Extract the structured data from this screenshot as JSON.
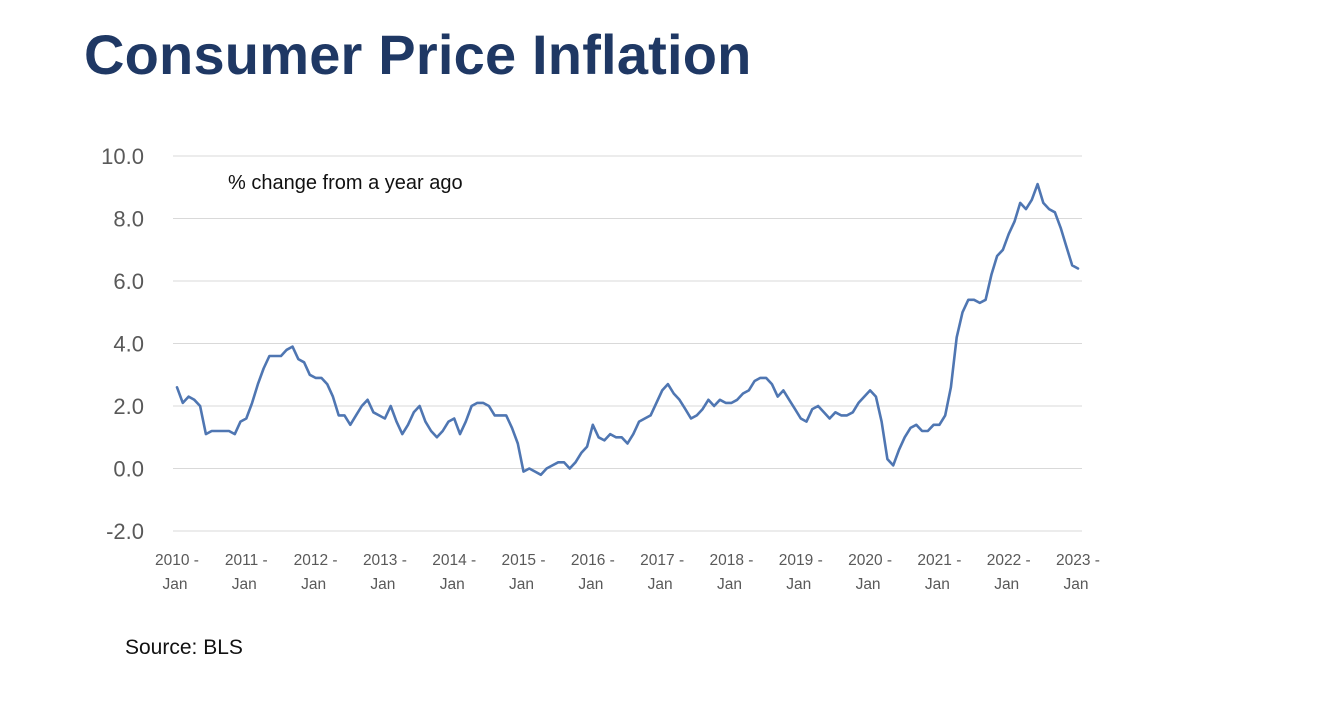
{
  "slide": {
    "title": "Consumer Price Inflation",
    "source": "Source: BLS"
  },
  "colors": {
    "title": "#1f3864",
    "series_line": "#4f76b2",
    "gridline": "#d9d9d9",
    "tick_text": "#595959"
  },
  "chart_data": {
    "type": "line",
    "title": "",
    "annotation": "% change from a year ago",
    "xlabel": "",
    "ylabel": "",
    "ylim": [
      -2,
      10
    ],
    "y_ticks": [
      "10.0",
      "8.0",
      "6.0",
      "4.0",
      "2.0",
      "0.0",
      "-2.0"
    ],
    "x_ticks": [
      {
        "line1": "2010 -",
        "line2": "Jan"
      },
      {
        "line1": "2011 -",
        "line2": "Jan"
      },
      {
        "line1": "2012 -",
        "line2": "Jan"
      },
      {
        "line1": "2013 -",
        "line2": "Jan"
      },
      {
        "line1": "2014 -",
        "line2": "Jan"
      },
      {
        "line1": "2015 -",
        "line2": "Jan"
      },
      {
        "line1": "2016 -",
        "line2": "Jan"
      },
      {
        "line1": "2017 -",
        "line2": "Jan"
      },
      {
        "line1": "2018 -",
        "line2": "Jan"
      },
      {
        "line1": "2019 -",
        "line2": "Jan"
      },
      {
        "line1": "2020 -",
        "line2": "Jan"
      },
      {
        "line1": "2021 -",
        "line2": "Jan"
      },
      {
        "line1": "2022 -",
        "line2": "Jan"
      },
      {
        "line1": "2023 -",
        "line2": "Jan"
      }
    ],
    "grid": true,
    "series": [
      {
        "name": "CPI % change from a year ago",
        "start": "2010-01",
        "frequency": "monthly",
        "values": [
          2.6,
          2.1,
          2.3,
          2.2,
          2.0,
          1.1,
          1.2,
          1.2,
          1.2,
          1.2,
          1.1,
          1.5,
          1.6,
          2.1,
          2.7,
          3.2,
          3.6,
          3.6,
          3.6,
          3.8,
          3.9,
          3.5,
          3.4,
          3.0,
          2.9,
          2.9,
          2.7,
          2.3,
          1.7,
          1.7,
          1.4,
          1.7,
          2.0,
          2.2,
          1.8,
          1.7,
          1.6,
          2.0,
          1.5,
          1.1,
          1.4,
          1.8,
          2.0,
          1.5,
          1.2,
          1.0,
          1.2,
          1.5,
          1.6,
          1.1,
          1.5,
          2.0,
          2.1,
          2.1,
          2.0,
          1.7,
          1.7,
          1.7,
          1.3,
          0.8,
          -0.1,
          0.0,
          -0.1,
          -0.2,
          0.0,
          0.1,
          0.2,
          0.2,
          0.0,
          0.2,
          0.5,
          0.7,
          1.4,
          1.0,
          0.9,
          1.1,
          1.0,
          1.0,
          0.8,
          1.1,
          1.5,
          1.6,
          1.7,
          2.1,
          2.5,
          2.7,
          2.4,
          2.2,
          1.9,
          1.6,
          1.7,
          1.9,
          2.2,
          2.0,
          2.2,
          2.1,
          2.1,
          2.2,
          2.4,
          2.5,
          2.8,
          2.9,
          2.9,
          2.7,
          2.3,
          2.5,
          2.2,
          1.9,
          1.6,
          1.5,
          1.9,
          2.0,
          1.8,
          1.6,
          1.8,
          1.7,
          1.7,
          1.8,
          2.1,
          2.3,
          2.5,
          2.3,
          1.5,
          0.3,
          0.1,
          0.6,
          1.0,
          1.3,
          1.4,
          1.2,
          1.2,
          1.4,
          1.4,
          1.7,
          2.6,
          4.2,
          5.0,
          5.4,
          5.4,
          5.3,
          5.4,
          6.2,
          6.8,
          7.0,
          7.5,
          7.9,
          8.5,
          8.3,
          8.6,
          9.1,
          8.5,
          8.3,
          8.2,
          7.7,
          7.1,
          6.5,
          6.4
        ]
      }
    ]
  }
}
